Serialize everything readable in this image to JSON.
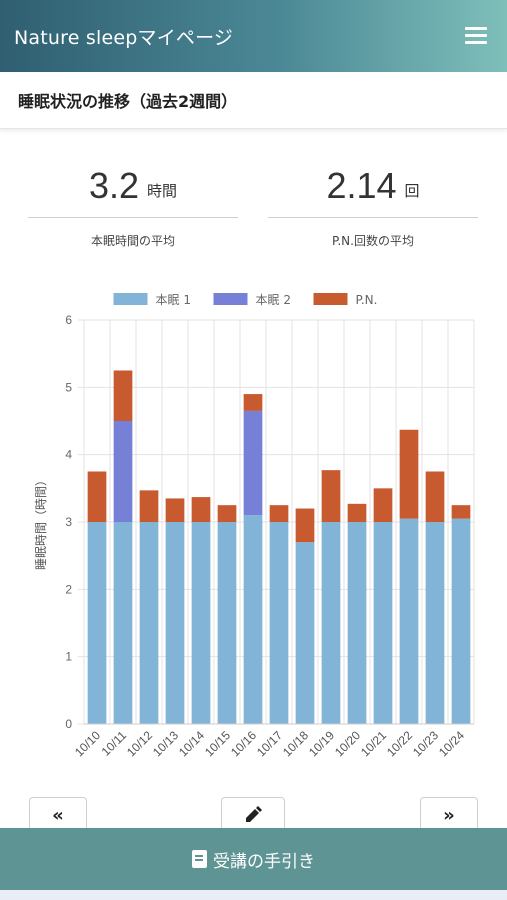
{
  "header": {
    "title": "Nature sleepマイページ",
    "menu_icon": "hamburger-menu-icon"
  },
  "section": {
    "title": "睡眠状況の推移（過去2週間）"
  },
  "stats": [
    {
      "value": "3.2",
      "unit": "時間",
      "label": "本眠時間の平均"
    },
    {
      "value": "2.14",
      "unit": "回",
      "label": "P.N.回数の平均"
    }
  ],
  "chart_data": {
    "type": "bar",
    "stacked": true,
    "categories": [
      "10/10",
      "10/11",
      "10/12",
      "10/13",
      "10/14",
      "10/15",
      "10/16",
      "10/17",
      "10/18",
      "10/19",
      "10/20",
      "10/21",
      "10/22",
      "10/23",
      "10/24"
    ],
    "series": [
      {
        "name": "本眠 1",
        "color": "#82b4d8",
        "values": [
          3.0,
          3.0,
          3.0,
          3.0,
          3.0,
          3.0,
          3.1,
          3.0,
          2.7,
          3.0,
          3.0,
          3.0,
          3.05,
          3.0,
          3.05
        ]
      },
      {
        "name": "本眠 2",
        "color": "#7680d6",
        "values": [
          0,
          1.5,
          0,
          0,
          0,
          0,
          1.55,
          0,
          0,
          0,
          0,
          0,
          0,
          0,
          0
        ]
      },
      {
        "name": "P.N.",
        "color": "#c85a30",
        "values": [
          0.75,
          0.75,
          0.47,
          0.35,
          0.37,
          0.25,
          0.25,
          0.25,
          0.5,
          0.77,
          0.27,
          0.5,
          1.32,
          0.75,
          0.2
        ]
      }
    ],
    "ylabel": "睡眠時間（時間）",
    "ylim": [
      0,
      6
    ],
    "yticks": [
      "0",
      "1",
      "2",
      "3",
      "4",
      "5",
      "6"
    ],
    "grid": true,
    "legend": "top"
  },
  "nav": {
    "prev_label": "«",
    "edit_icon": "edit-icon",
    "next_label": "»"
  },
  "footer": {
    "label": "受講の手引き",
    "icon": "book-icon"
  }
}
